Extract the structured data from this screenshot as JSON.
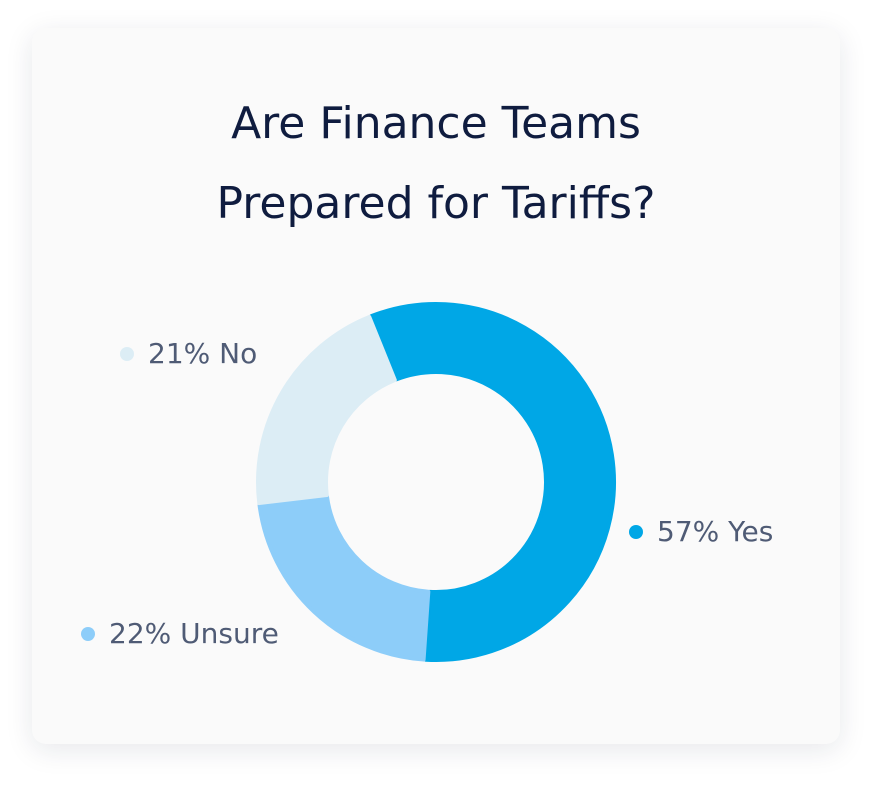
{
  "chart_data": {
    "type": "donut",
    "title": [
      "Are Finance Teams",
      "Prepared for Tariffs?"
    ],
    "values": [
      57,
      22,
      21
    ],
    "value_labels": [
      "57% Yes",
      "22% Unsure",
      "21% No"
    ],
    "colors": [
      "#00a7e6",
      "#8dcdf9",
      "#dcedf5"
    ]
  }
}
